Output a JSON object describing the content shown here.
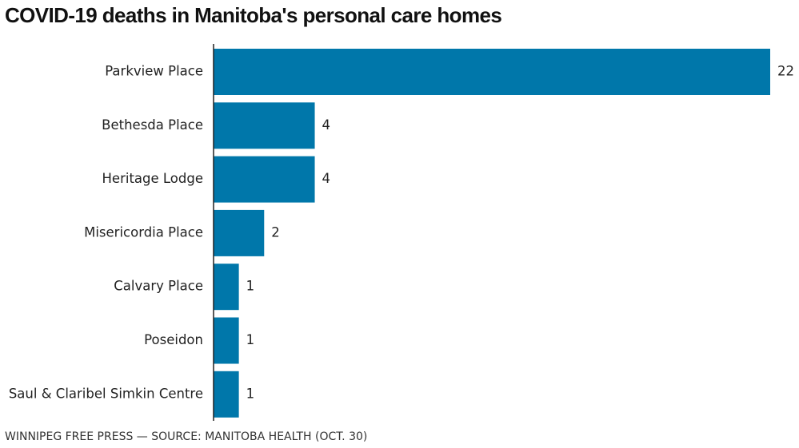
{
  "title": "COVID-19 deaths in Manitoba's personal care homes",
  "footer": "WINNIPEG FREE PRESS — SOURCE: MANITOBA HEALTH (OCT. 30)",
  "colors": {
    "bar": "#0077aa",
    "axis": "#222222"
  },
  "chart_data": {
    "type": "bar",
    "orientation": "horizontal",
    "categories": [
      "Parkview Place",
      "Bethesda Place",
      "Heritage Lodge",
      "Misericordia Place",
      "Calvary Place",
      "Poseidon",
      "Saul & Claribel Simkin Centre"
    ],
    "values": [
      22,
      4,
      4,
      2,
      1,
      1,
      1
    ],
    "title": "COVID-19 deaths in Manitoba's personal care homes",
    "xlabel": "",
    "ylabel": "",
    "xlim": [
      0,
      22
    ],
    "grid": false,
    "legend": "none",
    "data_labels": true
  }
}
